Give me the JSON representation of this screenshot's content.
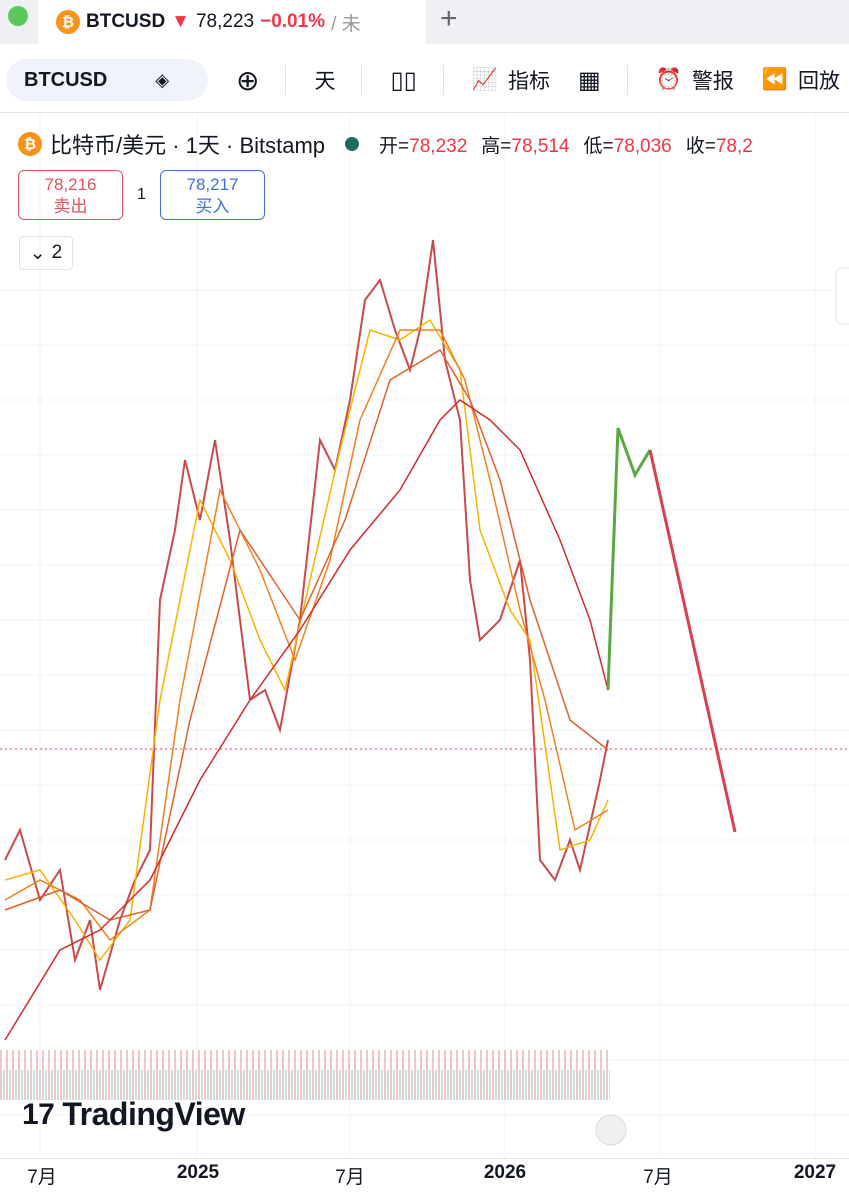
{
  "tab": {
    "symbol": "BTCUSD",
    "price": "78,223",
    "change": "−0.01%",
    "extra": "/ 未"
  },
  "toolbar": {
    "symbol": "BTCUSD",
    "interval": "天",
    "indicators": "指标",
    "alerts": "警报",
    "replay": "回放"
  },
  "legend": {
    "title": "比特币/美元 · 1天 · Bitstamp",
    "fields": [
      {
        "label": "开=",
        "value": "78,232"
      },
      {
        "label": "高=",
        "value": "78,514"
      },
      {
        "label": "低=",
        "value": "78,036"
      },
      {
        "label": "收=",
        "value": "78,2"
      }
    ]
  },
  "trade": {
    "sell_price": "78,216",
    "sell_label": "卖出",
    "spread": "1",
    "buy_price": "78,217",
    "buy_label": "买入"
  },
  "collapse": {
    "count": "2"
  },
  "watermark": "TradingView",
  "x_axis": [
    "7月",
    "2025",
    "7月",
    "2026",
    "7月",
    "2027"
  ]
}
